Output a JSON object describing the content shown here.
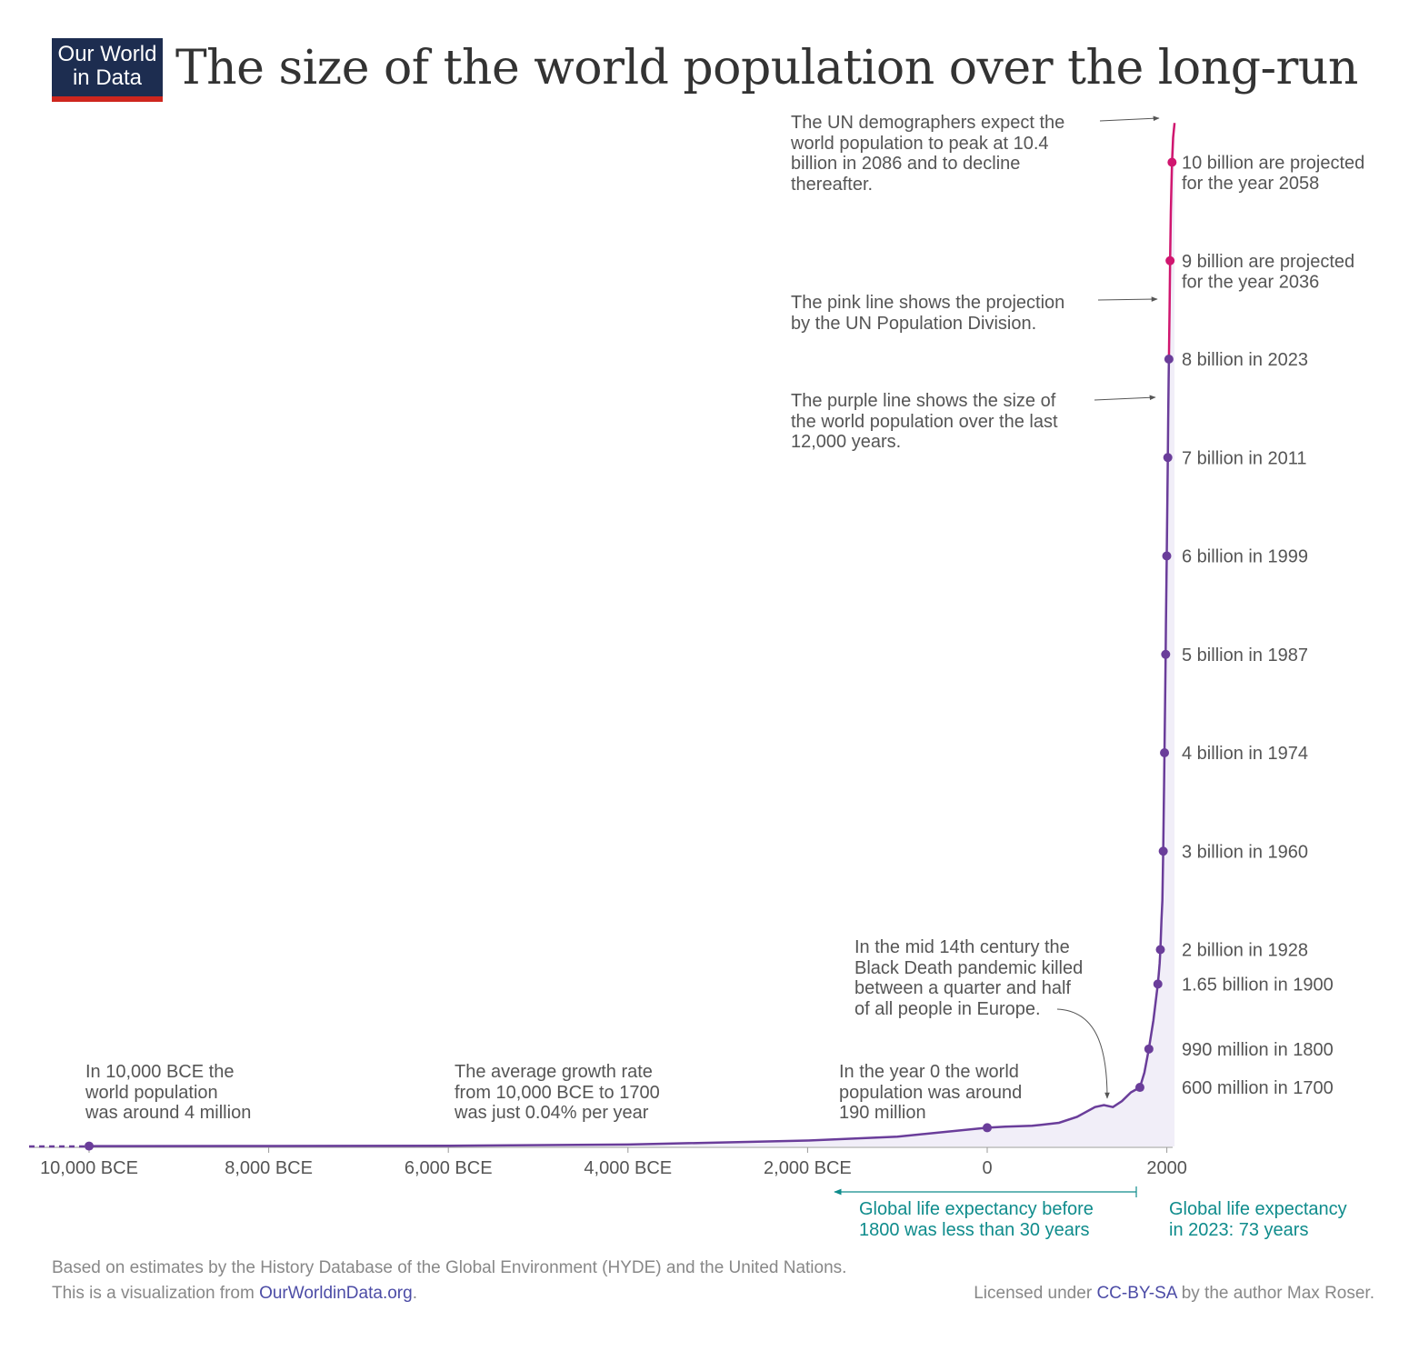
{
  "logo": {
    "line1": "Our World",
    "line2": "in Data"
  },
  "title": "The size of the world population over the long-run",
  "colors": {
    "history": "#6a3d9a",
    "projection": "#d0166f",
    "area": "#f1eef8",
    "teal": "#0f8c8c",
    "axis": "#999999",
    "link": "#4c4ca6",
    "logo_bg": "#1d2d50",
    "logo_bar": "#ce261e"
  },
  "chart_data": {
    "type": "line",
    "xlim": [
      -11000,
      2100
    ],
    "ylim": [
      0,
      10.6
    ],
    "x_ticks": [
      {
        "value": -10000,
        "label": "10,000 BCE"
      },
      {
        "value": -8000,
        "label": "8,000 BCE"
      },
      {
        "value": -6000,
        "label": "6,000 BCE"
      },
      {
        "value": -4000,
        "label": "4,000 BCE"
      },
      {
        "value": -2000,
        "label": "2,000 BCE"
      },
      {
        "value": 0,
        "label": "0"
      },
      {
        "value": 2000,
        "label": "2000"
      }
    ],
    "series": [
      {
        "values_unit": "billion",
        "x": [
          -10000,
          -8000,
          -6000,
          -4000,
          -2000,
          -1000,
          0,
          200,
          500,
          800,
          1000,
          1200,
          1300,
          1400,
          1500,
          1600,
          1700,
          1750,
          1800,
          1850,
          1900,
          1910,
          1920,
          1928,
          1940,
          1950,
          1960,
          1970,
          1974,
          1980,
          1987,
          1990,
          1999,
          2005,
          2011,
          2015,
          2020,
          2023
        ],
        "y": [
          0.004,
          0.005,
          0.007,
          0.019,
          0.06,
          0.1,
          0.19,
          0.2,
          0.21,
          0.24,
          0.3,
          0.4,
          0.42,
          0.4,
          0.46,
          0.55,
          0.6,
          0.75,
          0.99,
          1.28,
          1.65,
          1.75,
          1.86,
          2.0,
          2.3,
          2.5,
          3.0,
          3.7,
          4.0,
          4.45,
          5.0,
          5.3,
          6.0,
          6.5,
          7.0,
          7.4,
          7.8,
          8.0
        ]
      },
      {
        "values_unit": "billion",
        "x": [
          2023,
          2030,
          2036,
          2045,
          2050,
          2058,
          2070,
          2086
        ],
        "y": [
          8.0,
          8.5,
          9.0,
          9.5,
          9.7,
          10.0,
          10.25,
          10.4
        ]
      }
    ],
    "markers": [
      {
        "x": -10000,
        "y": 0.004,
        "label": ""
      },
      {
        "x": 0,
        "y": 0.19,
        "label": ""
      },
      {
        "x": 1700,
        "y": 0.6,
        "label": "600 million in 1700"
      },
      {
        "x": 1800,
        "y": 0.99,
        "label": "990 million in 1800"
      },
      {
        "x": 1900,
        "y": 1.65,
        "label": "1.65 billion in 1900"
      },
      {
        "x": 1928,
        "y": 2.0,
        "label": "2 billion in 1928"
      },
      {
        "x": 1960,
        "y": 3.0,
        "label": "3 billion in 1960"
      },
      {
        "x": 1974,
        "y": 4.0,
        "label": "4 billion in 1974"
      },
      {
        "x": 1987,
        "y": 5.0,
        "label": "5 billion in 1987"
      },
      {
        "x": 1999,
        "y": 6.0,
        "label": "6 billion in 1999"
      },
      {
        "x": 2011,
        "y": 7.0,
        "label": "7 billion in 2011"
      },
      {
        "x": 2023,
        "y": 8.0,
        "label": "8 billion in 2023"
      },
      {
        "x": 2036,
        "y": 9.0,
        "label": "9 billion are projected\nfor the year 2036"
      },
      {
        "x": 2058,
        "y": 10.0,
        "label": "10 billion are projected\nfor the year 2058"
      }
    ]
  },
  "annotations": {
    "un_peak": "The UN demographers expect the\nworld population to peak at 10.4\nbillion in 2086 and to decline\nthereafter.",
    "pink_line": "The pink line shows the projection\nby the UN Population Division.",
    "purple_line": "The purple line shows the size of\nthe world population over the last\n12,000 years.",
    "black_death": "In the mid 14th century the\nBlack Death pandemic killed\nbetween a quarter and half\nof all people in Europe.",
    "start": "In 10,000 BCE the\nworld population\nwas around 4 million",
    "growth": "The average growth rate\nfrom 10,000 BCE to 1700\nwas just 0.04% per year",
    "year_zero": "In the year 0 the world\npopulation was around\n190 million",
    "life_before": "Global life expectancy before\n1800 was less than 30 years",
    "life_2023": "Global life expectancy\nin 2023: 73 years"
  },
  "footer": {
    "source": "Based on estimates by the History Database of the Global Environment (HYDE) and the United Nations.",
    "viz_prefix": "This is a visualization from ",
    "viz_link": "OurWorldinData.org",
    "viz_suffix": ".",
    "license_prefix": "Licensed under ",
    "license_link": "CC-BY-SA",
    "license_suffix": " by the author Max Roser."
  }
}
